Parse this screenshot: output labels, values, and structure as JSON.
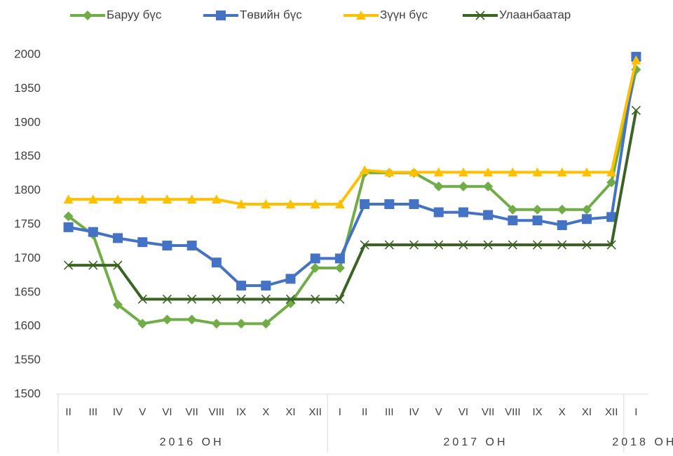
{
  "chart_data": {
    "type": "line",
    "categories": [
      "II",
      "III",
      "IV",
      "V",
      "VI",
      "VII",
      "VIII",
      "IX",
      "X",
      "XI",
      "XII",
      "I",
      "II",
      "III",
      "IV",
      "V",
      "VI",
      "VII",
      "VIII",
      "IX",
      "X",
      "XI",
      "XII",
      "I"
    ],
    "groups": [
      {
        "label": "2016 ОН",
        "count": 11
      },
      {
        "label": "2017 ОН",
        "count": 12
      },
      {
        "label": "2018 ОН",
        "count": 1
      }
    ],
    "series": [
      {
        "name": "Баруу бүс",
        "color": "#70ad47",
        "marker": "diamond",
        "values": [
          1762,
          1735,
          1632,
          1604,
          1610,
          1610,
          1604,
          1604,
          1604,
          1634,
          1686,
          1686,
          1826,
          1826,
          1826,
          1806,
          1806,
          1806,
          1772,
          1772,
          1772,
          1772,
          1812,
          1978
        ]
      },
      {
        "name": "Төвийн бүс",
        "color": "#4472c4",
        "marker": "square",
        "values": [
          1746,
          1739,
          1730,
          1724,
          1719,
          1719,
          1694,
          1660,
          1660,
          1670,
          1700,
          1700,
          1780,
          1780,
          1780,
          1768,
          1768,
          1764,
          1756,
          1756,
          1749,
          1758,
          1761,
          1997
        ]
      },
      {
        "name": "Зүүн бүс",
        "color": "#ffc000",
        "marker": "triangle",
        "values": [
          1787,
          1787,
          1787,
          1787,
          1787,
          1787,
          1787,
          1780,
          1780,
          1780,
          1780,
          1780,
          1830,
          1827,
          1827,
          1827,
          1827,
          1827,
          1827,
          1827,
          1827,
          1827,
          1827,
          1992
        ]
      },
      {
        "name": "Улаанбаатар",
        "color": "#3b6323",
        "marker": "x",
        "values": [
          1690,
          1690,
          1690,
          1640,
          1640,
          1640,
          1640,
          1640,
          1640,
          1640,
          1640,
          1640,
          1720,
          1720,
          1720,
          1720,
          1720,
          1720,
          1720,
          1720,
          1720,
          1720,
          1720,
          1918
        ]
      }
    ],
    "ylim": [
      1500,
      2000
    ],
    "yticks": [
      1500,
      1550,
      1600,
      1650,
      1700,
      1750,
      1800,
      1850,
      1900,
      1950,
      2000
    ],
    "legend": "top"
  }
}
